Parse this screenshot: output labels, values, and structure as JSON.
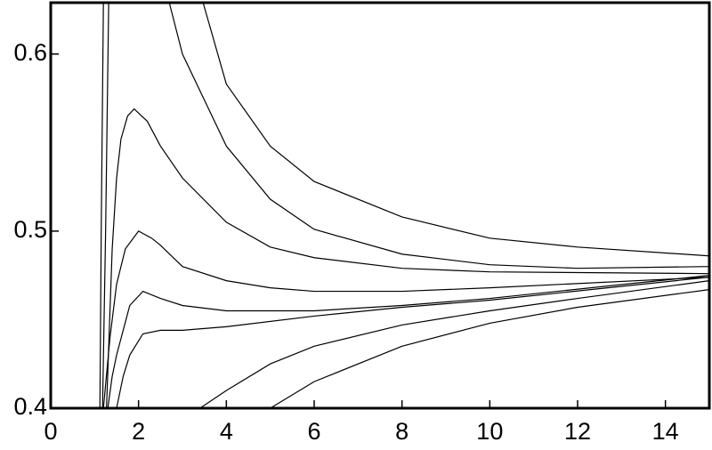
{
  "chart_data": {
    "type": "line",
    "xlim": [
      0,
      15
    ],
    "ylim": [
      0.4,
      0.629
    ],
    "xticks": [
      0,
      2,
      4,
      6,
      8,
      10,
      12,
      14
    ],
    "yticks": [
      0.4,
      0.5,
      0.6
    ],
    "series": [
      {
        "color": "#000000",
        "x": [
          3.47,
          4,
          5,
          6,
          8,
          10,
          12,
          15
        ],
        "values": [
          0.629,
          0.583,
          0.548,
          0.528,
          0.508,
          0.496,
          0.491,
          0.486
        ]
      },
      {
        "color": "#000000",
        "x": [
          2.7,
          3,
          4,
          5,
          6,
          8,
          10,
          12,
          15
        ],
        "values": [
          0.629,
          0.6,
          0.548,
          0.518,
          0.501,
          0.487,
          0.481,
          0.479,
          0.48
        ]
      },
      {
        "color": "#000000",
        "x": [
          1.27,
          1.4,
          1.5,
          1.6,
          1.75,
          1.9,
          2.2,
          2.5,
          3,
          4,
          5,
          6,
          8,
          10,
          15
        ],
        "values": [
          0.4,
          0.49,
          0.53,
          0.552,
          0.565,
          0.569,
          0.562,
          0.548,
          0.53,
          0.505,
          0.491,
          0.485,
          0.479,
          0.477,
          0.476
        ]
      },
      {
        "color": "#000000",
        "x": [
          1.2,
          1.35,
          1.5,
          1.7,
          2.0,
          2.3,
          2.5,
          3,
          4,
          5,
          6,
          8,
          10,
          15
        ],
        "values": [
          0.4,
          0.44,
          0.47,
          0.49,
          0.5,
          0.496,
          0.492,
          0.48,
          0.472,
          0.468,
          0.466,
          0.466,
          0.468,
          0.474
        ]
      },
      {
        "color": "#000000",
        "x": [
          1.3,
          1.4,
          1.5,
          1.8,
          2.1,
          2.5,
          3,
          4,
          6,
          8,
          10,
          15
        ],
        "values": [
          0.4,
          0.418,
          0.43,
          0.458,
          0.466,
          0.462,
          0.458,
          0.455,
          0.455,
          0.458,
          0.462,
          0.475
        ]
      },
      {
        "color": "#000000",
        "x": [
          1.5,
          1.65,
          1.8,
          2.1,
          2.5,
          3,
          4,
          6,
          8,
          10,
          15
        ],
        "values": [
          0.4,
          0.418,
          0.43,
          0.442,
          0.444,
          0.444,
          0.446,
          0.452,
          0.457,
          0.461,
          0.474
        ]
      },
      {
        "color": "#000000",
        "x": [
          3.4,
          4,
          5,
          6,
          8,
          10,
          12,
          15
        ],
        "values": [
          0.4,
          0.41,
          0.425,
          0.435,
          0.447,
          0.455,
          0.462,
          0.472
        ]
      },
      {
        "color": "#000000",
        "x": [
          5.0,
          6,
          8,
          10,
          12,
          15
        ],
        "values": [
          0.4,
          0.415,
          0.435,
          0.448,
          0.457,
          0.467
        ]
      },
      {
        "color": "#000000",
        "x": [
          1.12,
          1.15,
          1.2
        ],
        "values": [
          0.4,
          0.5,
          0.629
        ]
      },
      {
        "color": "#000000",
        "x": [
          1.18,
          1.25,
          1.32
        ],
        "values": [
          0.4,
          0.5,
          0.629
        ]
      }
    ]
  }
}
